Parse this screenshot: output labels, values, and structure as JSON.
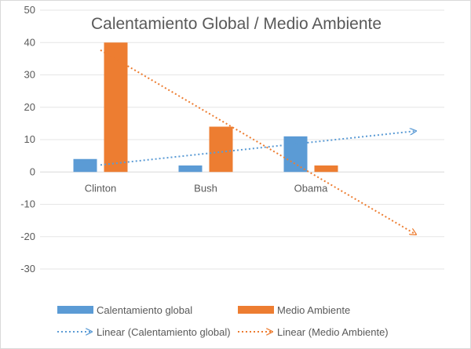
{
  "chart_data": {
    "type": "bar",
    "title": "Calentamiento Global / Medio Ambiente",
    "categories": [
      "Clinton",
      "Bush",
      "Obama"
    ],
    "series": [
      {
        "name": "Calentamiento global",
        "values": [
          4,
          2,
          11
        ],
        "color": "#5b9bd5"
      },
      {
        "name": "Medio Ambiente",
        "values": [
          40,
          14,
          2
        ],
        "color": "#ed7d31"
      }
    ],
    "trendlines": [
      {
        "name": "Linear (Calentamiento global)",
        "series": "Calentamiento global",
        "kind": "linear",
        "extend_forward_periods": 1,
        "color": "#5b9bd5"
      },
      {
        "name": "Linear (Medio Ambiente)",
        "series": "Medio Ambiente",
        "kind": "linear",
        "extend_forward_periods": 1,
        "color": "#ed7d31"
      }
    ],
    "ylim": [
      -30,
      50
    ],
    "yticks": [
      -30,
      -20,
      -10,
      0,
      10,
      20,
      30,
      40,
      50
    ],
    "grid": true,
    "legend": "bottom"
  }
}
